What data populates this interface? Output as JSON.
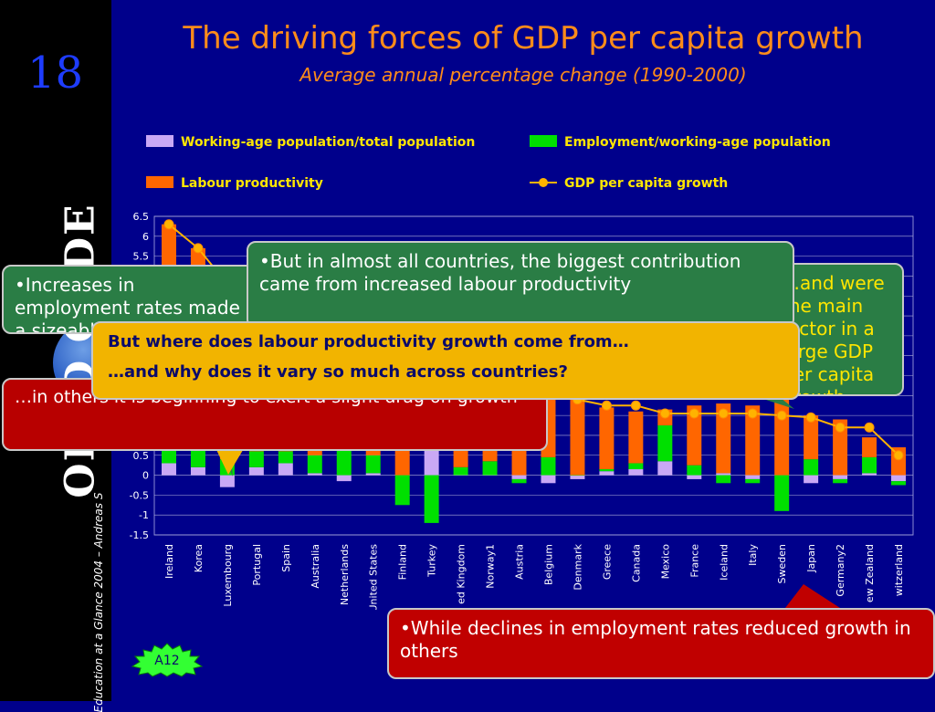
{
  "slide": {
    "number": "18",
    "title": "The driving forces of GDP per capita growth",
    "subtitle": "Average annual percentage change (1990-2000)",
    "logo_text": "OECD OCDE",
    "source_note": "Education at a Glance 2004 – Andreas S",
    "badge": "A12"
  },
  "colors": {
    "background": "#00008b",
    "working_age": "#c9a8f5",
    "employment": "#00e000",
    "productivity": "#ff6600",
    "gdp_line": "#ffb300",
    "title": "#ff8c1a"
  },
  "callouts": {
    "employment": "•Increases in employment rates made a sizeable contribution to growth in some countries",
    "productivity": "•But in almost all countries, the biggest contribution came from increased labour productivity",
    "gdp": "…and were the main factor in a large GDP per capita growth",
    "drag": "…in others it is beginning to exert a slight drag on growth",
    "decline": "•While declines in employment rates reduced growth in others",
    "question_1": "But where does labour productivity growth come from…",
    "question_2": "…and why does it vary so much across countries?"
  },
  "chart_data": {
    "type": "bar",
    "stacked": true,
    "categories": [
      "Ireland",
      "Korea",
      "Luxembourg",
      "Portugal",
      "Spain",
      "Australia",
      "Netherlands",
      "United States",
      "Finland",
      "Turkey",
      "United Kingdom",
      "Norway1",
      "Austria",
      "Belgium",
      "Denmark",
      "Greece",
      "Canada",
      "Mexico",
      "France",
      "Iceland",
      "Italy",
      "Sweden",
      "Japan",
      "Germany2",
      "New Zealand",
      "Switzerland"
    ],
    "visible_tick_labels": [
      "Ireland",
      "Korea",
      "Luxembourg",
      "Portugal",
      "Spain",
      "Australia",
      "Netherlands",
      "United States",
      "Finland",
      "Turkey",
      "ed Kingdom",
      "Norway1",
      "Austria",
      "Belgium",
      "Denmark",
      "Greece",
      "Canada",
      "Mexico",
      "France",
      "Iceland",
      "Italy",
      "Sweden",
      "Japan",
      "Germany2",
      "ew Zealand",
      "witzerland"
    ],
    "series": [
      {
        "name": "Working-age population/total population",
        "type": "bar",
        "values": [
          0.3,
          0.2,
          -0.3,
          0.2,
          0.3,
          0.05,
          -0.15,
          0.05,
          0.0,
          0.65,
          0.0,
          0.0,
          -0.1,
          -0.2,
          -0.1,
          0.1,
          0.15,
          0.35,
          -0.1,
          0.05,
          -0.1,
          0.0,
          -0.2,
          -0.1,
          0.05,
          -0.15
        ]
      },
      {
        "name": "Employment/working-age population",
        "type": "bar",
        "values": [
          1.6,
          1.0,
          0.4,
          0.4,
          0.3,
          0.45,
          0.65,
          0.45,
          -0.75,
          -1.2,
          0.2,
          0.35,
          -0.1,
          0.45,
          0.0,
          0.05,
          0.15,
          0.9,
          0.25,
          -0.2,
          -0.1,
          -0.9,
          0.4,
          -0.1,
          0.4,
          -0.1
        ]
      },
      {
        "name": "Labour productivity",
        "type": "bar",
        "values": [
          4.4,
          4.5,
          3.3,
          2.4,
          2.0,
          2.4,
          1.7,
          2.0,
          3.7,
          3.1,
          2.4,
          2.3,
          2.2,
          1.7,
          2.0,
          1.55,
          1.3,
          0.4,
          1.5,
          1.75,
          1.75,
          2.5,
          1.1,
          1.4,
          0.5,
          0.7
        ]
      },
      {
        "name": "GDP per capita growth",
        "type": "line",
        "values": [
          6.3,
          5.7,
          4.8,
          3.0,
          2.6,
          2.9,
          2.1,
          2.5,
          2.4,
          2.5,
          2.6,
          2.6,
          2.0,
          2.1,
          1.9,
          1.75,
          1.75,
          1.55,
          1.55,
          1.55,
          1.55,
          1.5,
          1.45,
          1.2,
          1.2,
          0.5
        ]
      }
    ],
    "ylim": [
      -1.5,
      6.5
    ],
    "yticks": [
      "6.5",
      "6",
      "5.5",
      "5",
      "4.5",
      "4",
      "3.5",
      "3",
      "2.5",
      "2",
      "1.5",
      "1",
      "0.5",
      "0",
      "-0.5",
      "-1",
      "-1.5"
    ],
    "grid": true,
    "legend": "top"
  }
}
